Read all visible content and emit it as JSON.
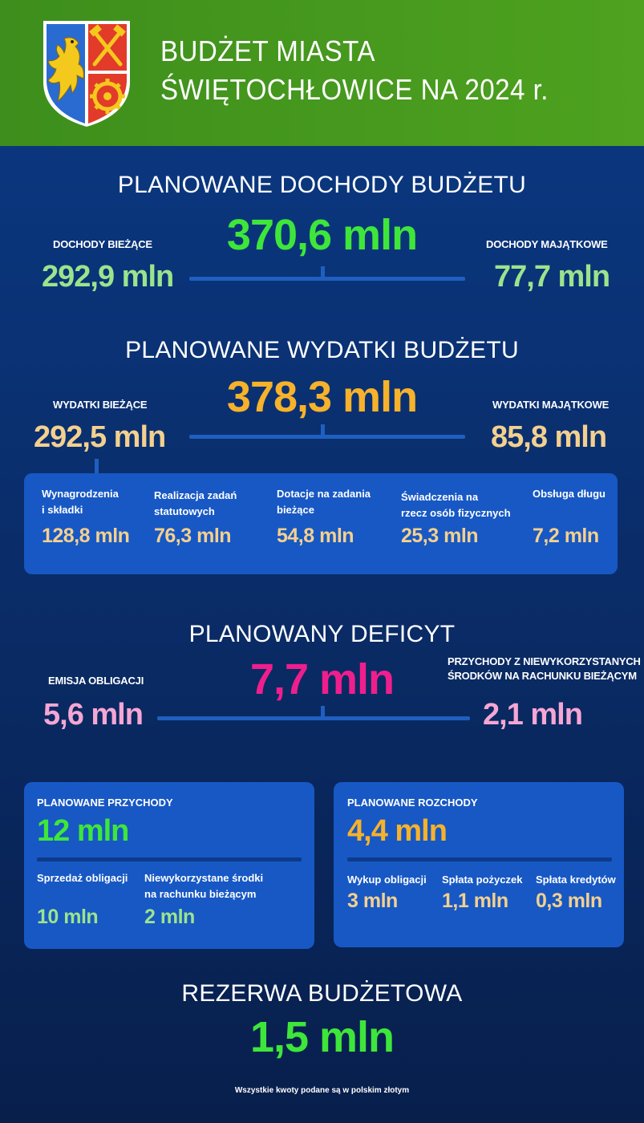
{
  "header": {
    "title_line1": "BUDŻET MIASTA",
    "title_line2": "ŚWIĘTOCHŁOWICE NA 2024 r."
  },
  "income": {
    "title": "PLANOWANE DOCHODY BUDŻETU",
    "total": "370,6 mln",
    "left_label": "DOCHODY BIEŻĄCE",
    "left_value": "292,9 mln",
    "right_label": "DOCHODY MAJĄTKOWE",
    "right_value": "77,7 mln"
  },
  "expenses": {
    "title": "PLANOWANE WYDATKI BUDŻETU",
    "total": "378,3 mln",
    "left_label": "WYDATKI BIEŻĄCE",
    "left_value": "292,5 mln",
    "right_label": "WYDATKI MAJĄTKOWE",
    "right_value": "85,8 mln",
    "breakdown": [
      {
        "label_line1": "Wynagrodzenia",
        "label_line2": "i składki",
        "value": "128,8 mln"
      },
      {
        "label_line1": "Realizacja zadań",
        "label_line2": "statutowych",
        "value": "76,3 mln"
      },
      {
        "label_line1": "Dotacje na zadania",
        "label_line2": "bieżące",
        "value": "54,8 mln"
      },
      {
        "label_line1": "Świadczenia na",
        "label_line2": "rzecz osób fizycznych",
        "value": "25,3 mln"
      },
      {
        "label_line1": "Obsługa długu",
        "label_line2": "",
        "value": "7,2 mln"
      }
    ]
  },
  "deficit": {
    "title": "PLANOWANY DEFICYT",
    "total": "7,7 mln",
    "left_label": "EMISJA OBLIGACJI",
    "left_value": "5,6 mln",
    "right_label_line1": "PRZYCHODY Z NIEWYKORZYSTANYCH",
    "right_label_line2": "ŚRODKÓW NA RACHUNKU BIEŻĄCYM",
    "right_value": "2,1 mln"
  },
  "revenues": {
    "title": "PLANOWANE PRZYCHODY",
    "total": "12 mln",
    "items": [
      {
        "label_line1": "Sprzedaż obligacji",
        "label_line2": "",
        "value": "10 mln"
      },
      {
        "label_line1": "Niewykorzystane środki",
        "label_line2": "na rachunku bieżącym",
        "value": "2 mln"
      }
    ]
  },
  "outflows": {
    "title": "PLANOWANE ROZCHODY",
    "total": "4,4 mln",
    "items": [
      {
        "label": "Wykup obligacji",
        "value": "3 mln"
      },
      {
        "label": "Spłata pożyczek",
        "value": "1,1 mln"
      },
      {
        "label": "Spłata kredytów",
        "value": "0,3 mln"
      }
    ]
  },
  "reserve": {
    "title": "REZERWA BUDŻETOWA",
    "value": "1,5 mln"
  },
  "footnote": "Wszystkie kwoty podane są w polskim złotym",
  "colors": {
    "header_green": "#4ea21f",
    "income_green": "#3ee63a",
    "expense_orange": "#f6b22b",
    "deficit_pink": "#f01e8d",
    "panel_blue": "#1758c4"
  }
}
